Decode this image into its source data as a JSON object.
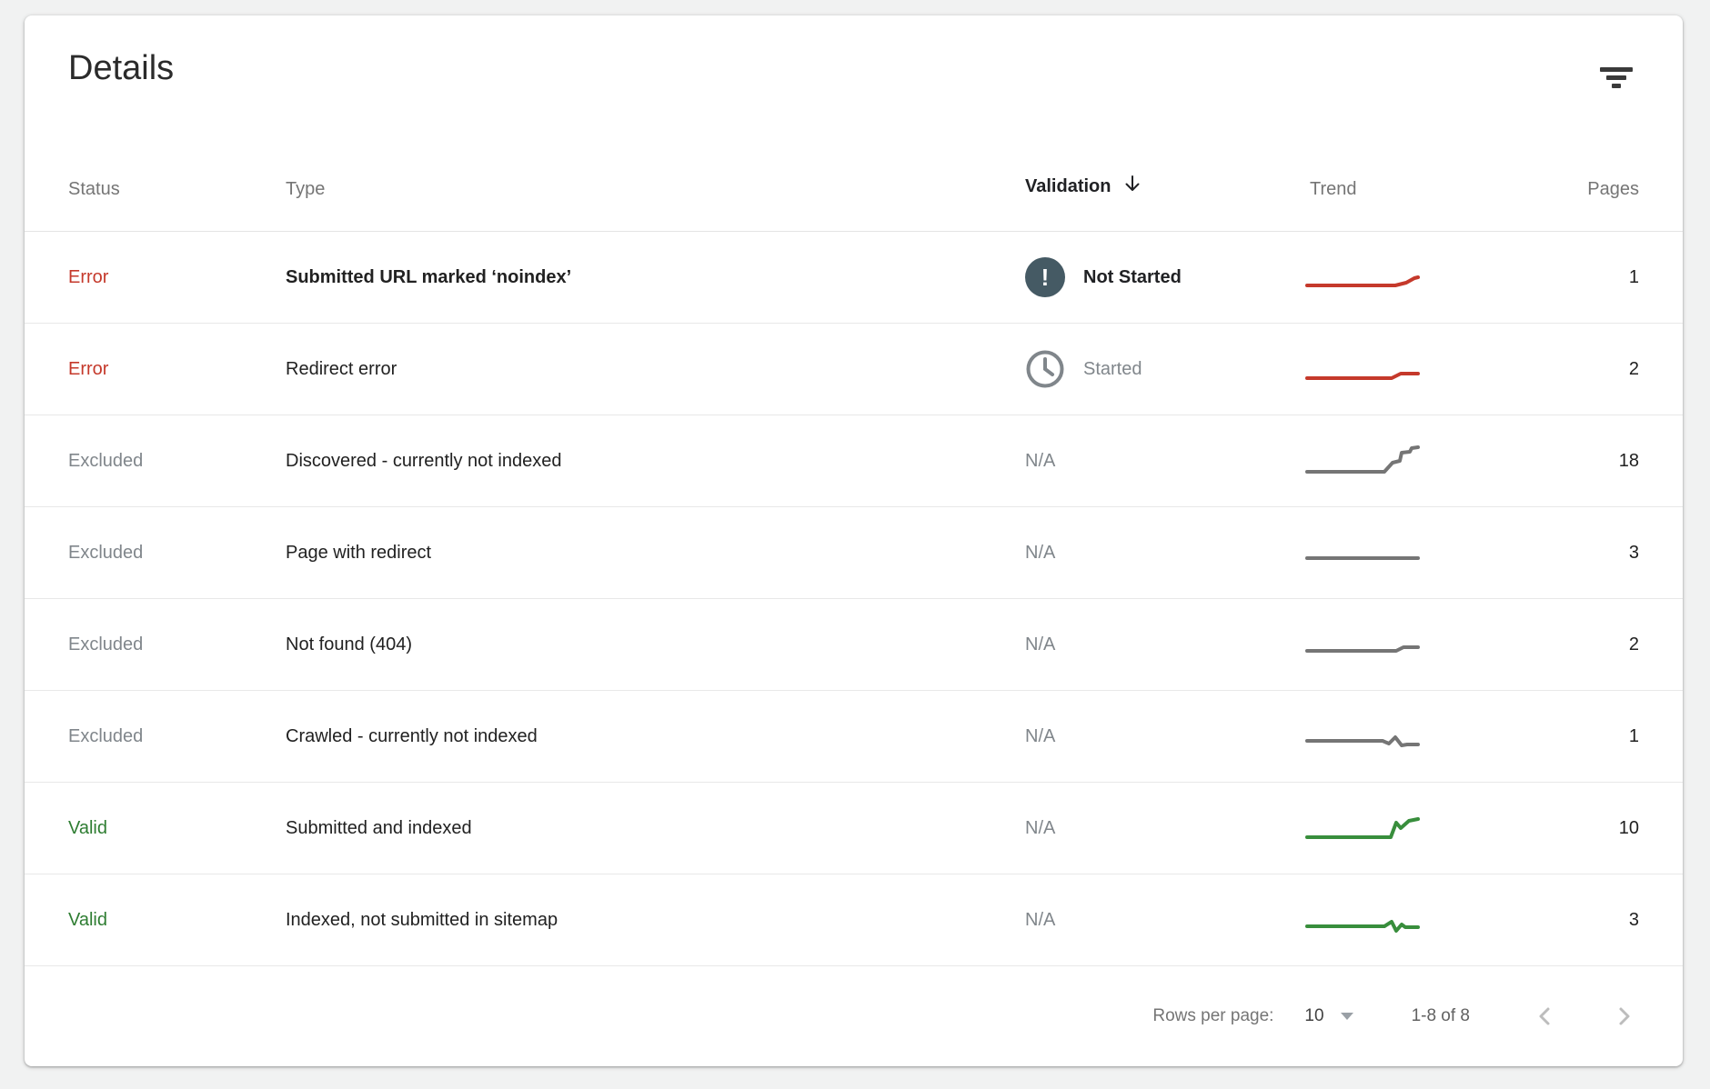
{
  "card": {
    "title": "Details",
    "filter_icon": "filter-list-icon"
  },
  "theme": {
    "error_color": "#c5392b",
    "valid_color": "#2e7d32",
    "excluded_color": "#80868b",
    "validation_badge_bg": "#455a64",
    "trend_red": "#c5392b",
    "trend_gray": "#757575",
    "trend_green": "#388e3c"
  },
  "table": {
    "columns": [
      {
        "label": "Status"
      },
      {
        "label": "Type"
      },
      {
        "label": "Validation",
        "sorted": true,
        "sort_icon": "arrow-down-icon"
      },
      {
        "label": "Trend"
      },
      {
        "label": "Pages"
      }
    ],
    "rows": [
      {
        "status": "Error",
        "status_kind": "error",
        "type": "Submitted URL marked ‘noindex’",
        "type_emphasis": true,
        "validation": {
          "icon": "error-circle-icon",
          "badge_glyph": "!",
          "label": "Not Started",
          "emphasis": true
        },
        "trend": {
          "color": "#c5392b",
          "points": [
            [
              3,
              29
            ],
            [
              100,
              29
            ],
            [
              112,
              26
            ],
            [
              121,
              21
            ],
            [
              125,
              20
            ]
          ]
        },
        "pages": "1"
      },
      {
        "status": "Error",
        "status_kind": "error",
        "type": "Redirect error",
        "validation": {
          "icon": "clock-icon",
          "label": "Started"
        },
        "trend": {
          "color": "#c5392b",
          "points": [
            [
              3,
              30
            ],
            [
              96,
              30
            ],
            [
              106,
              25
            ],
            [
              125,
              25
            ]
          ]
        },
        "pages": "2"
      },
      {
        "status": "Excluded",
        "status_kind": "excluded",
        "type": "Discovered - currently not indexed",
        "validation": {
          "label": "N/A"
        },
        "trend": {
          "color": "#757575",
          "points": [
            [
              3,
              32
            ],
            [
              88,
              32
            ],
            [
              97,
              22
            ],
            [
              105,
              20
            ],
            [
              107,
              11
            ],
            [
              116,
              10
            ],
            [
              118,
              6
            ],
            [
              125,
              5
            ]
          ]
        },
        "pages": "18"
      },
      {
        "status": "Excluded",
        "status_kind": "excluded",
        "type": "Page with redirect",
        "validation": {
          "label": "N/A"
        },
        "trend": {
          "color": "#757575",
          "points": [
            [
              3,
              26
            ],
            [
              125,
              26
            ]
          ]
        },
        "pages": "3"
      },
      {
        "status": "Excluded",
        "status_kind": "excluded",
        "type": "Not found (404)",
        "validation": {
          "label": "N/A"
        },
        "trend": {
          "color": "#757575",
          "points": [
            [
              3,
              27
            ],
            [
              101,
              27
            ],
            [
              109,
              23
            ],
            [
              125,
              23
            ]
          ]
        },
        "pages": "2"
      },
      {
        "status": "Excluded",
        "status_kind": "excluded",
        "type": "Crawled - currently not indexed",
        "validation": {
          "label": "N/A"
        },
        "trend": {
          "color": "#757575",
          "points": [
            [
              3,
              25
            ],
            [
              86,
              25
            ],
            [
              93,
              28
            ],
            [
              100,
              21
            ],
            [
              107,
              30
            ],
            [
              113,
              29
            ],
            [
              125,
              29
            ]
          ]
        },
        "pages": "1"
      },
      {
        "status": "Valid",
        "status_kind": "valid",
        "type": "Submitted and indexed",
        "validation": {
          "label": "N/A"
        },
        "trend": {
          "color": "#388e3c",
          "points": [
            [
              3,
              30
            ],
            [
              95,
              30
            ],
            [
              101,
              14
            ],
            [
              106,
              20
            ],
            [
              115,
              12
            ],
            [
              125,
              10
            ]
          ]
        },
        "pages": "10"
      },
      {
        "status": "Valid",
        "status_kind": "valid",
        "type": "Indexed, not submitted in sitemap",
        "validation": {
          "label": "N/A"
        },
        "trend": {
          "color": "#388e3c",
          "points": [
            [
              3,
              27
            ],
            [
              88,
              27
            ],
            [
              96,
              22
            ],
            [
              101,
              32
            ],
            [
              107,
              25
            ],
            [
              111,
              28
            ],
            [
              125,
              28
            ]
          ]
        },
        "pages": "3"
      }
    ]
  },
  "footer": {
    "rows_per_page_label": "Rows per page:",
    "rows_per_page_value": "10",
    "dropdown_icon": "dropdown-arrow-icon",
    "range": "1-8 of 8",
    "prev_icon": "chevron-left-icon",
    "next_icon": "chevron-right-icon"
  }
}
